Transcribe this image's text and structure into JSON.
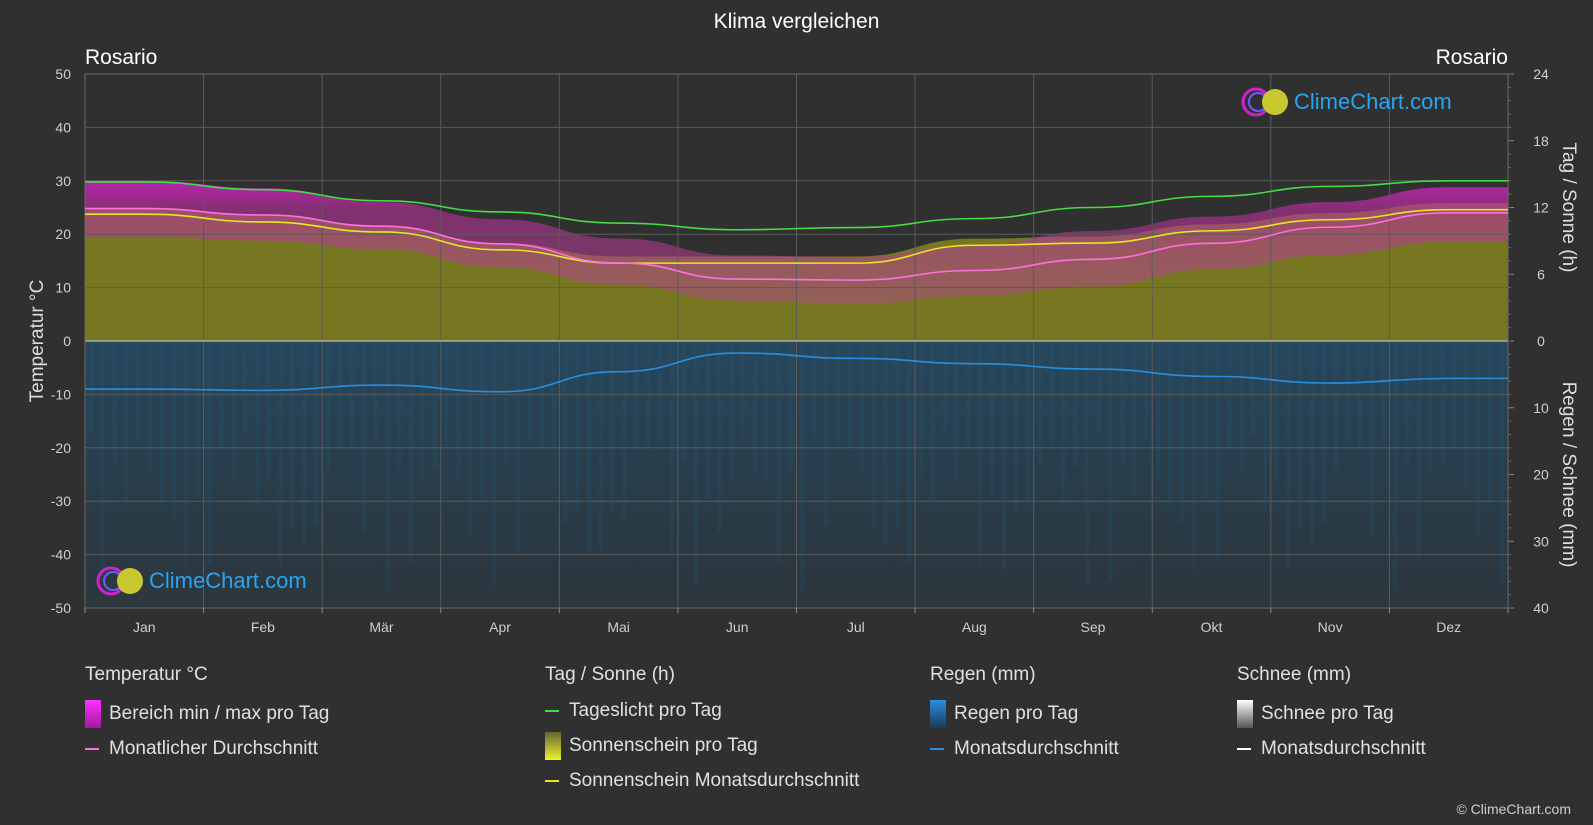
{
  "title": "Klima vergleichen",
  "location_left": "Rosario",
  "location_right": "Rosario",
  "watermark": "ClimeChart.com",
  "copyright": "© ClimeChart.com",
  "colors": {
    "daylight": "#44dd44",
    "sunshine_avg": "#e6e62a",
    "temp_avg": "#ff6fe0",
    "rain_avg": "#2a8ee0",
    "temp_range": "#e01fd2",
    "sunshine_fill": "#8f8f1e",
    "rain_fill": "#1f4a66",
    "snow": "#ffffff",
    "watermark": "#2aa4f0"
  },
  "chart_data": {
    "type": "line",
    "months": [
      "Jan",
      "Feb",
      "Mär",
      "Apr",
      "Mai",
      "Jun",
      "Jul",
      "Aug",
      "Sep",
      "Okt",
      "Nov",
      "Dez"
    ],
    "axes": {
      "left": {
        "label": "Temperatur °C",
        "range": [
          -50,
          50
        ],
        "ticks": [
          "50",
          "40",
          "30",
          "20",
          "10",
          "0",
          "-10",
          "-20",
          "-30",
          "-40",
          "-50"
        ]
      },
      "right_top": {
        "label": "Tag / Sonne (h)",
        "range": [
          0,
          24
        ],
        "ticks": [
          "24",
          "18",
          "12",
          "6",
          "0"
        ]
      },
      "right_bottom": {
        "label": "Regen / Schnee (mm)",
        "range": [
          0,
          40
        ],
        "ticks": [
          "0",
          "10",
          "20",
          "30",
          "40"
        ]
      }
    },
    "series": [
      {
        "name": "Tageslicht pro Tag",
        "unit": "h",
        "values": [
          14.3,
          13.6,
          12.6,
          11.6,
          10.6,
          10.0,
          10.2,
          11.0,
          12.0,
          13.0,
          13.9,
          14.4
        ]
      },
      {
        "name": "Sonnenschein Monatsdurchschnitt",
        "unit": "h",
        "values": [
          11.4,
          10.7,
          9.8,
          8.2,
          7.0,
          7.0,
          7.0,
          8.6,
          8.8,
          9.9,
          10.9,
          11.8
        ]
      },
      {
        "name": "Monatlicher Durchschnitt",
        "unit": "°C",
        "values": [
          24.8,
          23.6,
          21.5,
          18.2,
          14.6,
          11.6,
          11.4,
          13.2,
          15.3,
          18.3,
          21.3,
          24.0
        ]
      },
      {
        "name": "Monatsdurchschnitt Regen",
        "unit": "mm",
        "values": [
          7.2,
          7.4,
          6.6,
          7.6,
          4.6,
          1.8,
          2.6,
          3.4,
          4.2,
          5.3,
          6.3,
          5.6
        ]
      },
      {
        "name": "Monatsdurchschnitt Schnee",
        "unit": "mm",
        "values": [
          0,
          0,
          0,
          0,
          0,
          0,
          0,
          0,
          0,
          0,
          0,
          0
        ]
      }
    ],
    "temp_range_band": {
      "min": [
        19.5,
        18.8,
        17.2,
        13.8,
        10.5,
        7.5,
        7.0,
        8.4,
        10.2,
        13.4,
        16.1,
        18.6
      ],
      "max": [
        30.0,
        28.6,
        26.0,
        22.8,
        19.2,
        16.0,
        15.7,
        18.0,
        20.6,
        23.3,
        26.0,
        28.8
      ]
    },
    "grid": true
  },
  "legend": {
    "groups": [
      {
        "header": "Temperatur °C",
        "items": [
          {
            "label": "Bereich min / max pro Tag",
            "swatch": "box-magenta"
          },
          {
            "label": "Monatlicher Durchschnitt",
            "swatch": "line-pink"
          }
        ]
      },
      {
        "header": "Tag / Sonne (h)",
        "items": [
          {
            "label": "Tageslicht pro Tag",
            "swatch": "line-green"
          },
          {
            "label": "Sonnenschein pro Tag",
            "swatch": "box-yellow"
          },
          {
            "label": "Sonnenschein Monatsdurchschnitt",
            "swatch": "line-yellow"
          }
        ]
      },
      {
        "header": "Regen (mm)",
        "items": [
          {
            "label": "Regen pro Tag",
            "swatch": "box-blue"
          },
          {
            "label": "Monatsdurchschnitt",
            "swatch": "line-blue"
          }
        ]
      },
      {
        "header": "Schnee (mm)",
        "items": [
          {
            "label": "Schnee pro Tag",
            "swatch": "box-white"
          },
          {
            "label": "Monatsdurchschnitt",
            "swatch": "line-white"
          }
        ]
      }
    ]
  }
}
